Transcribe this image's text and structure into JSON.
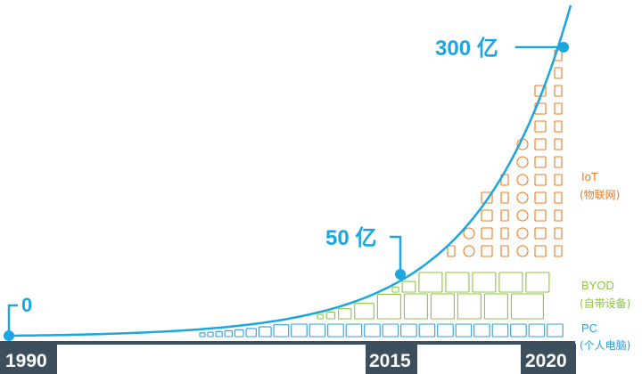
{
  "chart_data": {
    "type": "line",
    "x": [
      1990,
      2015,
      2020
    ],
    "y": [
      0,
      50,
      300
    ],
    "x_tick_labels": [
      "1990",
      "2015",
      "2020"
    ],
    "point_labels": [
      "0",
      "50 亿",
      "300 亿"
    ],
    "legend": [
      {
        "line1": "IoT",
        "line2": "(物联网)",
        "color": "#ee7a1e"
      },
      {
        "line1": "BYOD",
        "line2": "(自带设备)",
        "color": "#8cc63e"
      },
      {
        "line1": "PC",
        "line2": "(个人电脑)",
        "color": "#2f9fd8"
      }
    ],
    "xlim": [
      1990,
      2021
    ],
    "ylim": [
      0,
      330
    ],
    "colors": {
      "curve": "#1ba6e0",
      "axis_bar": "#3d4e5c",
      "tick_text": "#ffffff",
      "label_text": "#1ba6e0"
    }
  }
}
